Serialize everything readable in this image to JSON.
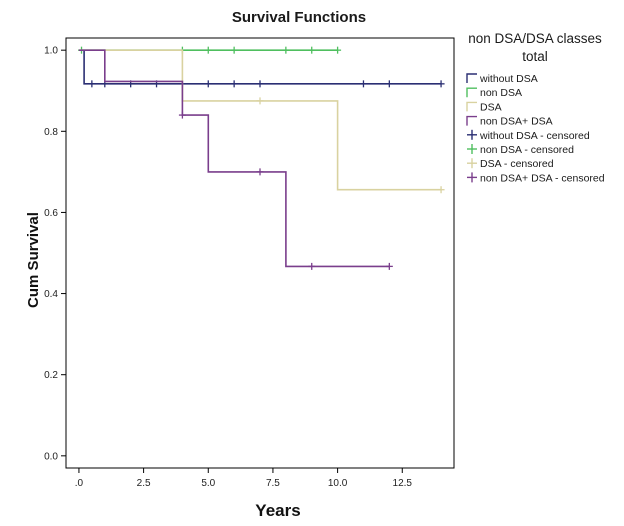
{
  "chart_data": {
    "type": "line",
    "title": "Survival Functions",
    "xlabel": "Years",
    "ylabel": "Cum Survival",
    "xlim": [
      -0.5,
      14.5
    ],
    "ylim": [
      -0.03,
      1.03
    ],
    "x_ticks": [
      ".0",
      "2.5",
      "5.0",
      "7.5",
      "10.0",
      "12.5"
    ],
    "x_tick_values": [
      0,
      2.5,
      5,
      7.5,
      10,
      12.5
    ],
    "y_ticks": [
      "0.0",
      "0.2",
      "0.4",
      "0.6",
      "0.8",
      "1.0"
    ],
    "y_tick_values": [
      0,
      0.2,
      0.4,
      0.6,
      0.8,
      1.0
    ],
    "grid": false,
    "legend_position": "right",
    "legend_title_lines": [
      "non DSA/DSA classes",
      "total"
    ],
    "legend_entries": [
      "without DSA",
      "non DSA",
      "DSA",
      "non DSA+ DSA",
      "without DSA - censored",
      "non DSA - censored",
      "DSA - censored",
      "non DSA+ DSA - censored"
    ],
    "series": [
      {
        "name": "without DSA",
        "color": "#2b2f73",
        "steps": [
          [
            0.2,
            1.0
          ],
          [
            0.2,
            0.917
          ],
          [
            14,
            0.917
          ]
        ],
        "censored": [
          [
            0.5,
            0.917
          ],
          [
            1,
            0.917
          ],
          [
            2,
            0.917
          ],
          [
            3,
            0.917
          ],
          [
            4,
            0.917
          ],
          [
            5,
            0.917
          ],
          [
            6,
            0.917
          ],
          [
            7,
            0.917
          ],
          [
            11,
            0.917
          ],
          [
            12,
            0.917
          ],
          [
            14,
            0.917
          ]
        ]
      },
      {
        "name": "non DSA",
        "color": "#4fbf5f",
        "steps": [
          [
            0.1,
            1.0
          ],
          [
            10,
            1.0
          ]
        ],
        "censored": [
          [
            0.1,
            1.0
          ],
          [
            4,
            1.0
          ],
          [
            5,
            1.0
          ],
          [
            6,
            1.0
          ],
          [
            8,
            1.0
          ],
          [
            9,
            1.0
          ],
          [
            10,
            1.0
          ]
        ]
      },
      {
        "name": "DSA",
        "color": "#d9d2a0",
        "steps": [
          [
            0,
            1.0
          ],
          [
            4,
            1.0
          ],
          [
            4,
            0.875
          ],
          [
            10,
            0.875
          ],
          [
            10,
            0.656
          ],
          [
            14,
            0.656
          ]
        ],
        "censored": [
          [
            7,
            0.875
          ],
          [
            14,
            0.656
          ]
        ]
      },
      {
        "name": "non DSA+ DSA",
        "color": "#7a3e8c",
        "steps": [
          [
            0,
            1.0
          ],
          [
            1,
            1.0
          ],
          [
            1,
            0.923
          ],
          [
            4,
            0.923
          ],
          [
            4,
            0.84
          ],
          [
            5,
            0.84
          ],
          [
            5,
            0.7
          ],
          [
            8,
            0.7
          ],
          [
            8,
            0.467
          ],
          [
            12,
            0.467
          ]
        ],
        "censored": [
          [
            4,
            0.84
          ],
          [
            7,
            0.7
          ],
          [
            9,
            0.467
          ],
          [
            12,
            0.467
          ]
        ]
      }
    ]
  }
}
